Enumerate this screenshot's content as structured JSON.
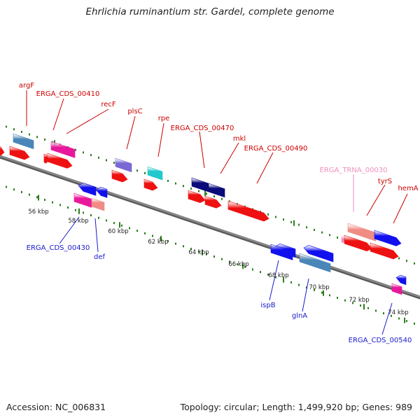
{
  "header": {
    "title": "Ehrlichia ruminantium str. Gardel, complete genome"
  },
  "footer": {
    "accession": "Accession: NC_006831",
    "summary": "Topology: circular; Length: 1,499,920 bp; Genes: 989"
  },
  "colors": {
    "backbone": "#8a8a8a",
    "tick": "#2e7d1e",
    "cds_plus": "#ee1111",
    "cds_minus": "#1111ee",
    "label_plus": "#cc0000",
    "label_minus": "#1a1acc",
    "label_trna": "#ee8fc0",
    "steel_blue": "#4a86b8",
    "magenta": "#e8189c",
    "medium_purple": "#7a68d4",
    "turquoise": "#22c8cc",
    "navy": "#0a0a7a",
    "salmon": "#ef8c84"
  },
  "scale": {
    "ticks": [
      "56 kbp",
      "58 kbp",
      "60 kbp",
      "62 kbp",
      "64 kbp",
      "66 kbp",
      "68 kbp",
      "70 kbp",
      "72 kbp",
      "74 kbp"
    ]
  },
  "feature_labels": [
    {
      "text": "argF",
      "strand": "plus"
    },
    {
      "text": "ERGA_CDS_00410",
      "strand": "plus"
    },
    {
      "text": "recF",
      "strand": "plus"
    },
    {
      "text": "plsC",
      "strand": "plus"
    },
    {
      "text": "rpe",
      "strand": "plus"
    },
    {
      "text": "ERGA_CDS_00470",
      "strand": "plus"
    },
    {
      "text": "mkl",
      "strand": "plus"
    },
    {
      "text": "ERGA_CDS_00490",
      "strand": "plus"
    },
    {
      "text": "ERGA_TRNA_00030",
      "strand": "trna"
    },
    {
      "text": "tyrS",
      "strand": "plus"
    },
    {
      "text": "hemA",
      "strand": "plus"
    },
    {
      "text": "ERGA_CDS_00430",
      "strand": "minus"
    },
    {
      "text": "def",
      "strand": "minus"
    },
    {
      "text": "ispB",
      "strand": "minus"
    },
    {
      "text": "glnA",
      "strand": "minus"
    },
    {
      "text": "ERGA_CDS_00540",
      "strand": "minus"
    }
  ]
}
